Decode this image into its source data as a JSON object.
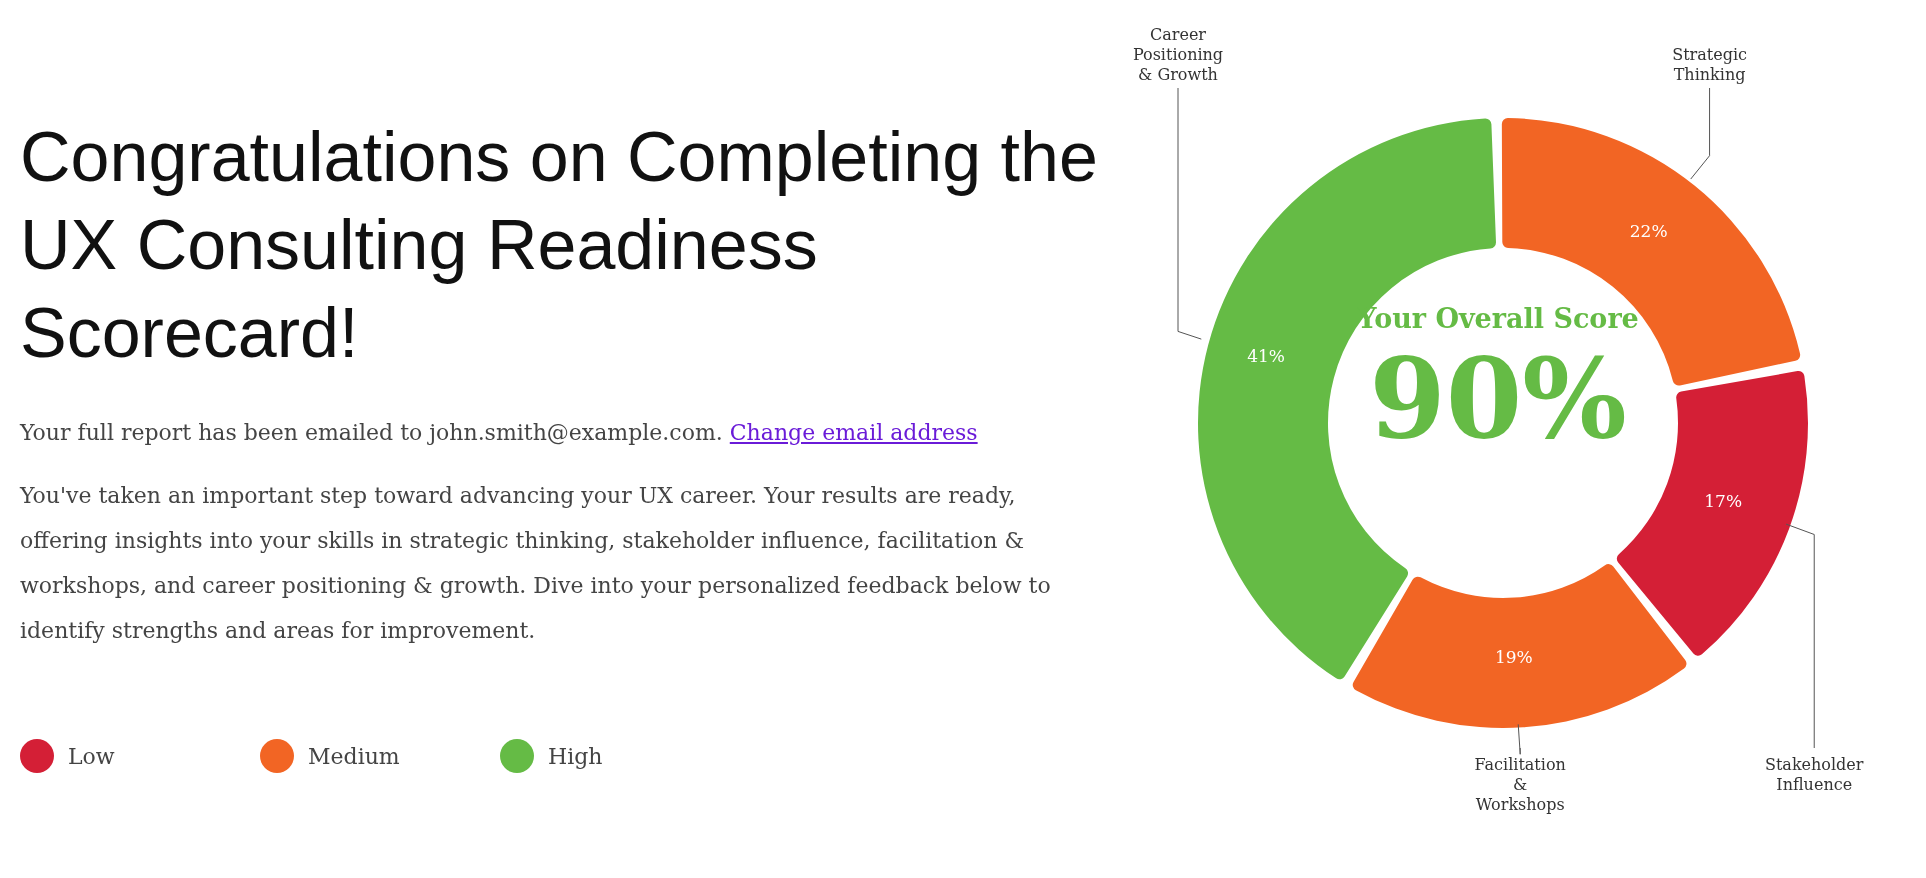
{
  "chart_data": {
    "type": "donut",
    "title": "Congratulations on Completing the UX Consulting Readiness Scorecard!",
    "subtitle": "Your Overall Score",
    "categories": [
      "Stakeholder Influence",
      "Facilitation & Workshops",
      "Career Positioning & Growth",
      "Strategic Thinking"
    ],
    "values": [
      17,
      19,
      41,
      22
    ],
    "value_labels": [
      "17%",
      "19%",
      "41%",
      "22%"
    ],
    "colors": [
      "#d41f36",
      "#f26524",
      "#65bb45",
      "#f26524"
    ],
    "annotations": [
      "90%",
      "Your full report has been emailed to john.smith@example.com.",
      "Change email address",
      "You've taken an important step toward advancing your UX career. Your results are ready, offering insights into your skills in strategic thinking, stakeholder influence, facilitation & workshops, and career positioning & growth. Dive into your personalized feedback below to identify strengths and areas for improvement.",
      "Low",
      "Medium",
      "High"
    ]
  }
}
